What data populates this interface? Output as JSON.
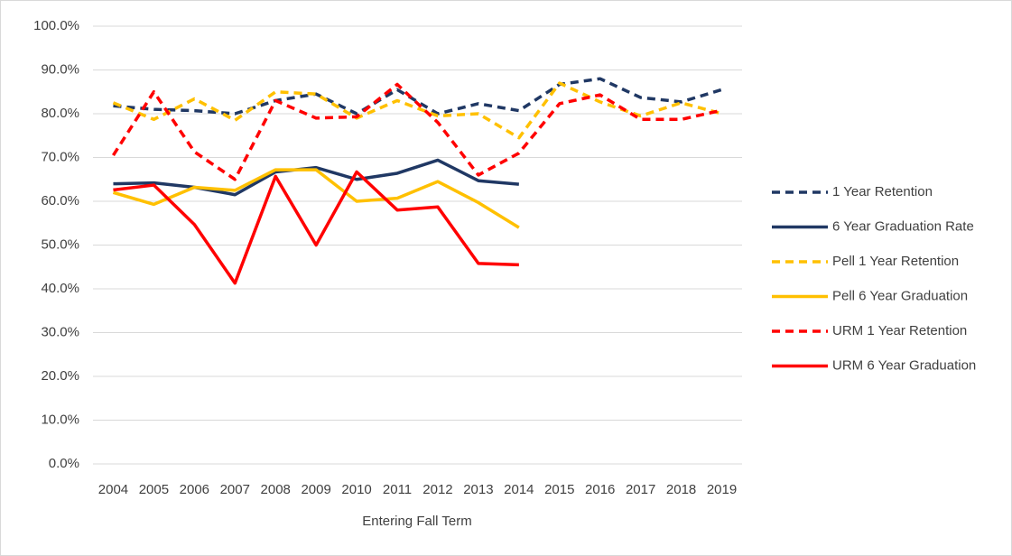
{
  "chart_data": {
    "type": "line",
    "x_label": "Entering Fall Term",
    "categories": [
      "2004",
      "2005",
      "2006",
      "2007",
      "2008",
      "2009",
      "2010",
      "2011",
      "2012",
      "2013",
      "2014",
      "2015",
      "2016",
      "2017",
      "2018",
      "2019"
    ],
    "ylim": [
      0,
      100
    ],
    "yticks": [
      {
        "value": 0,
        "label": "0.0%"
      },
      {
        "value": 10,
        "label": "10.0%"
      },
      {
        "value": 20,
        "label": "20.0%"
      },
      {
        "value": 30,
        "label": "30.0%"
      },
      {
        "value": 40,
        "label": "40.0%"
      },
      {
        "value": 50,
        "label": "50.0%"
      },
      {
        "value": 60,
        "label": "60.0%"
      },
      {
        "value": 70,
        "label": "70.0%"
      },
      {
        "value": 80,
        "label": "80.0%"
      },
      {
        "value": 90,
        "label": "90.0%"
      },
      {
        "value": 100,
        "label": "100.0%"
      }
    ],
    "grid": true,
    "legend": "right",
    "series": [
      {
        "name": "1 Year Retention",
        "color": "#203864",
        "dashed": true,
        "values": [
          81.8,
          81,
          80.7,
          80,
          83,
          84.5,
          80,
          85.5,
          80,
          82.3,
          80.7,
          86.7,
          88,
          83.7,
          82.7,
          85.5
        ]
      },
      {
        "name": "6 Year Graduation Rate",
        "color": "#203864",
        "dashed": false,
        "values": [
          64,
          64.2,
          63.2,
          61.5,
          66.7,
          67.7,
          65,
          66.4,
          69.4,
          64.7,
          63.9,
          null,
          null,
          null,
          null,
          null
        ]
      },
      {
        "name": "Pell 1 Year Retention",
        "color": "#ffc000",
        "dashed": true,
        "values": [
          82.5,
          78.7,
          83.4,
          78.5,
          85,
          84.5,
          79,
          83,
          79.5,
          80,
          74.5,
          87,
          82.7,
          79.5,
          82.5,
          80
        ]
      },
      {
        "name": "Pell 6 Year Graduation",
        "color": "#ffc000",
        "dashed": false,
        "values": [
          62,
          59.3,
          63.2,
          62.5,
          67.2,
          67.2,
          60,
          60.7,
          64.5,
          59.7,
          54,
          null,
          null,
          null,
          null,
          null
        ]
      },
      {
        "name": "URM 1 Year Retention",
        "color": "#ff0000",
        "dashed": true,
        "values": [
          70.5,
          85,
          71.3,
          65,
          83,
          79,
          79.3,
          86.7,
          78,
          66,
          71,
          82.3,
          84.3,
          78.7,
          78.7,
          80.8
        ]
      },
      {
        "name": "URM 6 Year Graduation",
        "color": "#ff0000",
        "dashed": false,
        "values": [
          62.6,
          63.7,
          54.7,
          41.3,
          65.7,
          50,
          66.7,
          58,
          58.7,
          45.8,
          45.5,
          null,
          null,
          null,
          null,
          null
        ]
      }
    ]
  }
}
